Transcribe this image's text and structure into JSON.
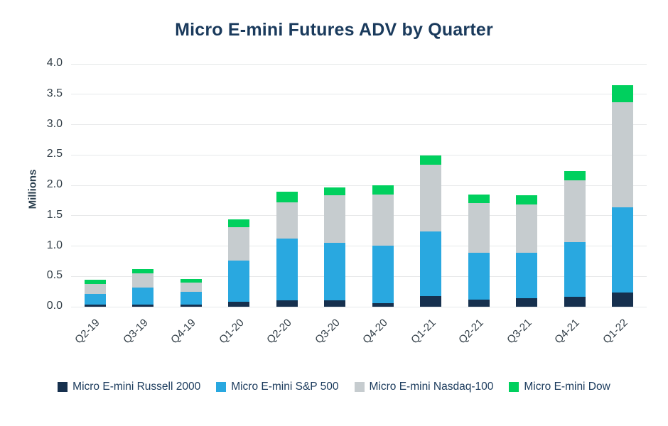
{
  "chart_data": {
    "type": "bar",
    "stacked": true,
    "title": "Micro E-mini Futures ADV by Quarter",
    "xlabel": "",
    "ylabel": "Millions",
    "ylim": [
      0,
      4.0
    ],
    "ytick_step": 0.5,
    "grid": true,
    "legend_position": "bottom",
    "categories": [
      "Q2-19",
      "Q3-19",
      "Q4-19",
      "Q1-20",
      "Q2-20",
      "Q3-20",
      "Q4-20",
      "Q1-21",
      "Q2-21",
      "Q3-21",
      "Q4-21",
      "Q1-22"
    ],
    "series": [
      {
        "name": "Micro E-mini Russell 2000",
        "color": "#16304e",
        "values": [
          0.03,
          0.04,
          0.03,
          0.08,
          0.1,
          0.1,
          0.06,
          0.18,
          0.12,
          0.14,
          0.16,
          0.23
        ]
      },
      {
        "name": "Micro E-mini S&P 500",
        "color": "#29a8e0",
        "values": [
          0.18,
          0.28,
          0.21,
          0.68,
          1.02,
          0.95,
          0.95,
          1.06,
          0.77,
          0.75,
          0.91,
          1.41
        ]
      },
      {
        "name": "Micro E-mini Nasdaq-100",
        "color": "#c6cccf",
        "values": [
          0.16,
          0.23,
          0.16,
          0.55,
          0.6,
          0.79,
          0.84,
          1.1,
          0.82,
          0.8,
          1.01,
          1.73
        ]
      },
      {
        "name": "Micro E-mini Dow",
        "color": "#00d05e",
        "values": [
          0.07,
          0.07,
          0.06,
          0.13,
          0.17,
          0.12,
          0.15,
          0.15,
          0.14,
          0.15,
          0.16,
          0.28
        ]
      }
    ],
    "totals": [
      0.44,
      0.62,
      0.46,
      1.44,
      1.89,
      1.96,
      2.0,
      2.49,
      1.85,
      1.84,
      2.24,
      3.65
    ]
  },
  "colors": {
    "title_text": "#1a3a5c",
    "axis_text": "#333f48",
    "gridline": "#e7e9ea",
    "background": "#ffffff"
  }
}
